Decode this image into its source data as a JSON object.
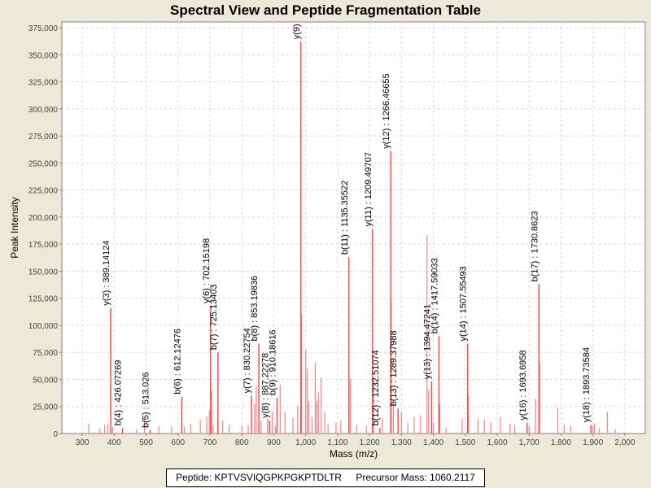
{
  "chart_data": {
    "type": "bar",
    "title": "Spectral View and Peptide Fragmentation Table",
    "xlabel": "Mass (m/z)",
    "ylabel": "Peak Intensity",
    "xlim": [
      236,
      2064
    ],
    "ylim": [
      0,
      380000
    ],
    "xticks": [
      300,
      400,
      500,
      600,
      700,
      800,
      900,
      1000,
      1100,
      1200,
      1300,
      1400,
      1500,
      1600,
      1700,
      1800,
      1900,
      2000
    ],
    "xtick_labels": [
      "300",
      "400",
      "500",
      "600",
      "700",
      "800",
      "900",
      "1,000",
      "1,100",
      "1,200",
      "1,300",
      "1,400",
      "1,500",
      "1,600",
      "1,700",
      "1,800",
      "1,900",
      "2,000"
    ],
    "yticks": [
      0,
      25000,
      50000,
      75000,
      100000,
      125000,
      150000,
      175000,
      200000,
      225000,
      250000,
      275000,
      300000,
      325000,
      350000,
      375000
    ],
    "ytick_labels": [
      "0",
      "25,000",
      "50,000",
      "75,000",
      "100,000",
      "125,000",
      "150,000",
      "175,000",
      "200,000",
      "225,000",
      "250,000",
      "275,000",
      "300,000",
      "325,000",
      "350,000",
      "375,000"
    ],
    "grid": true,
    "annotated_peaks": [
      {
        "mz": 389.14,
        "intensity": 116000,
        "label": "y(3) : 389.14124"
      },
      {
        "mz": 426.07,
        "intensity": 5000,
        "label": "b(4) : 426.07269"
      },
      {
        "mz": 513.03,
        "intensity": 3000,
        "label": "b(5) : 513.026"
      },
      {
        "mz": 612.12,
        "intensity": 34000,
        "label": "b(6) : 612.12476"
      },
      {
        "mz": 702.15,
        "intensity": 118000,
        "label": "y(6) : 702.15198"
      },
      {
        "mz": 725.13,
        "intensity": 75000,
        "label": "b(7) : 725.13403"
      },
      {
        "mz": 830.23,
        "intensity": 35000,
        "label": "y(7) : 830.22754"
      },
      {
        "mz": 853.2,
        "intensity": 83000,
        "label": "b(8) : 853.19836"
      },
      {
        "mz": 887.22,
        "intensity": 12000,
        "label": "y(8) : 887.22278"
      },
      {
        "mz": 910.19,
        "intensity": 33000,
        "label": "b(9) : 910.18616"
      },
      {
        "mz": 985.0,
        "intensity": 362000,
        "label": "y(9) :"
      },
      {
        "mz": 1135.36,
        "intensity": 163000,
        "label": "b(11) : 1135.35522"
      },
      {
        "mz": 1209.5,
        "intensity": 189000,
        "label": "y(11) : 1209.49707"
      },
      {
        "mz": 1232.51,
        "intensity": 5000,
        "label": "b(12) : 1232.51074"
      },
      {
        "mz": 1266.47,
        "intensity": 261000,
        "label": "y(12) : 1266.46655"
      },
      {
        "mz": 1289.38,
        "intensity": 23000,
        "label": "b(13) : 1289.37988"
      },
      {
        "mz": 1394.47,
        "intensity": 48000,
        "label": "y(13) : 1394.47241"
      },
      {
        "mz": 1417.59,
        "intensity": 90000,
        "label": "b(14) : 1417.59033"
      },
      {
        "mz": 1507.55,
        "intensity": 83000,
        "label": "y(14) : 1507.55493"
      },
      {
        "mz": 1693.7,
        "intensity": 10000,
        "label": "y(16) : 1693.6958"
      },
      {
        "mz": 1730.86,
        "intensity": 138000,
        "label": "b(17) : 1730.8623"
      },
      {
        "mz": 1893.74,
        "intensity": 8000,
        "label": "y(18) : 1893.73584"
      }
    ],
    "other_peaks": [
      [
        320,
        9000
      ],
      [
        355,
        5000
      ],
      [
        370,
        8000
      ],
      [
        380,
        9000
      ],
      [
        395,
        6000
      ],
      [
        470,
        4000
      ],
      [
        495,
        13000
      ],
      [
        540,
        7000
      ],
      [
        580,
        7000
      ],
      [
        620,
        6000
      ],
      [
        640,
        9000
      ],
      [
        670,
        13000
      ],
      [
        690,
        16000
      ],
      [
        698,
        21000
      ],
      [
        705,
        40000
      ],
      [
        710,
        8000
      ],
      [
        740,
        12000
      ],
      [
        760,
        8000
      ],
      [
        800,
        7000
      ],
      [
        820,
        8000
      ],
      [
        840,
        27000
      ],
      [
        845,
        44000
      ],
      [
        860,
        12000
      ],
      [
        880,
        14000
      ],
      [
        895,
        20000
      ],
      [
        905,
        7000
      ],
      [
        920,
        45000
      ],
      [
        935,
        20000
      ],
      [
        960,
        15000
      ],
      [
        975,
        25000
      ],
      [
        987,
        110000
      ],
      [
        1000,
        77000
      ],
      [
        1005,
        60000
      ],
      [
        1010,
        30000
      ],
      [
        1020,
        15000
      ],
      [
        1030,
        65000
      ],
      [
        1035,
        30000
      ],
      [
        1040,
        38000
      ],
      [
        1048,
        52000
      ],
      [
        1060,
        20000
      ],
      [
        1070,
        8000
      ],
      [
        1095,
        10000
      ],
      [
        1110,
        12000
      ],
      [
        1140,
        50000
      ],
      [
        1160,
        8000
      ],
      [
        1190,
        7000
      ],
      [
        1212,
        50000
      ],
      [
        1240,
        14000
      ],
      [
        1268,
        124000
      ],
      [
        1275,
        30000
      ],
      [
        1300,
        20000
      ],
      [
        1320,
        10000
      ],
      [
        1340,
        15000
      ],
      [
        1360,
        17000
      ],
      [
        1380,
        183000
      ],
      [
        1385,
        40000
      ],
      [
        1400,
        10000
      ],
      [
        1420,
        27000
      ],
      [
        1440,
        5000
      ],
      [
        1490,
        14000
      ],
      [
        1510,
        35000
      ],
      [
        1540,
        13000
      ],
      [
        1560,
        13000
      ],
      [
        1580,
        10000
      ],
      [
        1610,
        15000
      ],
      [
        1640,
        9000
      ],
      [
        1655,
        8000
      ],
      [
        1700,
        7000
      ],
      [
        1720,
        32000
      ],
      [
        1733,
        65000
      ],
      [
        1790,
        24000
      ],
      [
        1810,
        8000
      ],
      [
        1830,
        7000
      ],
      [
        1900,
        7000
      ],
      [
        1905,
        9000
      ],
      [
        1920,
        5000
      ],
      [
        1945,
        20000
      ],
      [
        1970,
        4000
      ]
    ]
  },
  "footer": {
    "peptide": "Peptide: KPTVSVIQGPKPGKPTDLTR",
    "precursor": "Precursor Mass: 1060.2117"
  }
}
